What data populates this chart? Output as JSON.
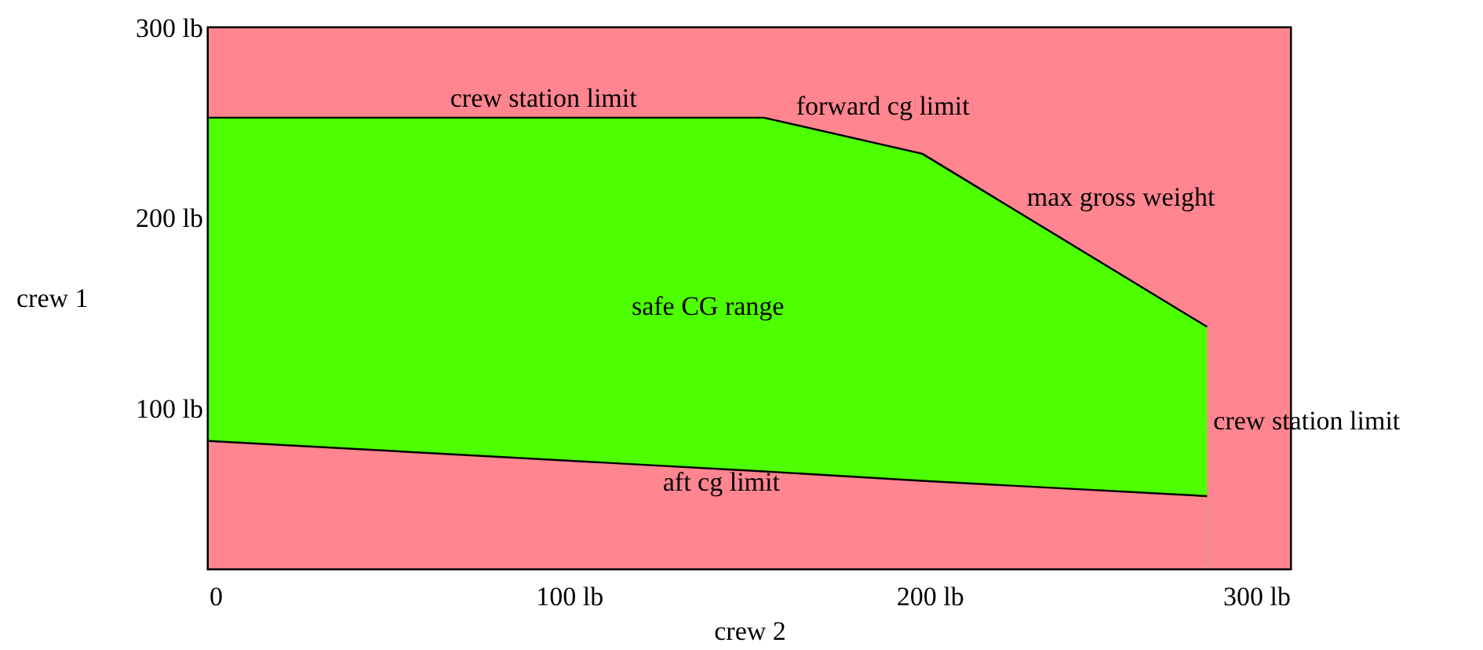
{
  "chart_data": {
    "type": "area",
    "xlabel": "crew 2",
    "ylabel": "crew 1",
    "x": [
      0,
      154,
      198,
      277
    ],
    "series": [
      {
        "color": "#4dff00",
        "values": [
          253,
          253,
          234,
          143
        ]
      },
      {
        "color": "#ff8590",
        "values": [
          83,
          67,
          62,
          54
        ]
      }
    ],
    "bands": [
      {
        "axis": "y",
        "from": 16,
        "to": 300,
        "color": "#ff8590"
      }
    ],
    "annotations": [
      {
        "text": "crew station limit",
        "x": 67,
        "y": 253
      },
      {
        "text": "forward cg limit",
        "x": 163,
        "y": 249
      },
      {
        "text": "max gross weight",
        "x": 227,
        "y": 201
      },
      {
        "text": "crew station limit",
        "x": 277,
        "y": 93
      },
      {
        "text": "aft cg limit",
        "x": 126,
        "y": 70
      },
      "safe CG range"
    ],
    "xlim": [
      0,
      300
    ],
    "ylim": [
      16,
      300
    ],
    "xticks": [
      0,
      {
        "value": 100,
        "label": "100 lb"
      },
      {
        "value": 200,
        "label": "200 lb"
      },
      {
        "value": 300,
        "label": "300 lb"
      }
    ],
    "yticks": [
      {
        "value": 100,
        "label": "100 lb"
      },
      {
        "value": 200,
        "label": "200 lb"
      },
      {
        "value": 300,
        "label": "300 lb"
      }
    ]
  }
}
